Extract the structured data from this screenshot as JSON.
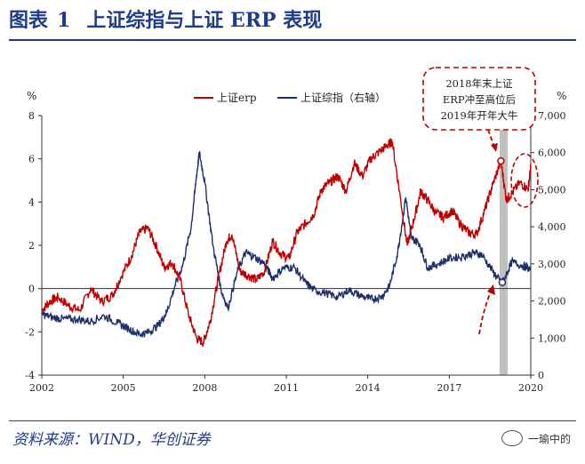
{
  "header": {
    "figure_label": "图表",
    "figure_number": "1",
    "title": "上证综指与上证 ERP 表现"
  },
  "source": "资料来源：WIND，华创证券",
  "watermark": "一瑜中的",
  "colors": {
    "erp": "#c00000",
    "index": "#1f2f6b",
    "title": "#1f3c88",
    "highlight": "#c0c0c0"
  },
  "chart_data": {
    "type": "line",
    "left_axis_unit": "%",
    "right_axis_unit": "%",
    "x_ticks": [
      "2002",
      "2005",
      "2008",
      "2011",
      "2014",
      "2017",
      "2020"
    ],
    "x_tick_values": [
      2002,
      2005,
      2008,
      2011,
      2014,
      2017,
      2020
    ],
    "x_range": [
      2002,
      2020
    ],
    "y_left_ticks": [
      "-4",
      "-2",
      "0",
      "2",
      "4",
      "6",
      "8"
    ],
    "y_left_range": [
      -4,
      8
    ],
    "y_right_ticks": [
      "0",
      "1,000",
      "2,000",
      "3,000",
      "4,000",
      "5,000",
      "6,000",
      "7,000"
    ],
    "y_right_range": [
      0,
      7000
    ],
    "legend": [
      "上证erp",
      "上证综指（右轴）"
    ],
    "annotation": {
      "lines": [
        "2018年末上证",
        "ERP冲至高位后",
        "2019年开年大牛"
      ]
    },
    "highlight_band": [
      2018.85,
      2019.15
    ],
    "series": [
      {
        "name": "上证erp",
        "axis": "left",
        "x": [
          2002.0,
          2002.3,
          2002.6,
          2003.0,
          2003.4,
          2003.8,
          2004.2,
          2004.6,
          2004.9,
          2005.3,
          2005.6,
          2005.9,
          2006.2,
          2006.5,
          2006.8,
          2007.1,
          2007.4,
          2007.7,
          2007.95,
          2008.2,
          2008.5,
          2008.8,
          2009.0,
          2009.3,
          2009.6,
          2009.9,
          2010.2,
          2010.5,
          2010.8,
          2011.1,
          2011.4,
          2011.7,
          2012.0,
          2012.3,
          2012.6,
          2012.9,
          2013.2,
          2013.5,
          2013.8,
          2014.1,
          2014.4,
          2014.7,
          2014.9,
          2015.2,
          2015.45,
          2015.7,
          2015.95,
          2016.2,
          2016.5,
          2016.8,
          2017.1,
          2017.4,
          2017.7,
          2018.0,
          2018.3,
          2018.6,
          2018.9,
          2019.1,
          2019.3,
          2019.6,
          2019.9,
          2020.0
        ],
        "values": [
          -1.0,
          -0.6,
          -0.4,
          -0.8,
          -1.0,
          0.0,
          -0.6,
          -0.3,
          0.5,
          1.5,
          2.6,
          2.8,
          2.0,
          1.0,
          1.2,
          0.4,
          -1.2,
          -2.3,
          -2.5,
          -1.5,
          0.5,
          2.2,
          2.5,
          0.8,
          0.6,
          0.4,
          0.8,
          2.2,
          1.6,
          1.4,
          2.6,
          3.0,
          3.4,
          4.6,
          4.9,
          5.2,
          4.5,
          5.8,
          5.2,
          6.0,
          6.3,
          6.6,
          6.8,
          4.2,
          2.0,
          3.2,
          4.5,
          4.1,
          3.5,
          3.3,
          3.6,
          3.0,
          2.6,
          2.5,
          3.6,
          4.8,
          5.9,
          4.1,
          4.4,
          4.9,
          4.6,
          5.6
        ]
      },
      {
        "name": "上证综指（右轴）",
        "axis": "right",
        "x": [
          2002.0,
          2002.4,
          2002.8,
          2003.3,
          2003.8,
          2004.3,
          2004.8,
          2005.2,
          2005.6,
          2005.9,
          2006.3,
          2006.6,
          2006.9,
          2007.2,
          2007.5,
          2007.7,
          2007.8,
          2008.0,
          2008.3,
          2008.6,
          2008.85,
          2009.2,
          2009.5,
          2009.8,
          2010.2,
          2010.5,
          2010.9,
          2011.3,
          2011.7,
          2012.0,
          2012.5,
          2012.9,
          2013.3,
          2013.7,
          2014.1,
          2014.5,
          2014.8,
          2015.1,
          2015.4,
          2015.6,
          2015.9,
          2016.2,
          2016.6,
          2017.0,
          2017.5,
          2017.9,
          2018.2,
          2018.6,
          2018.9,
          2019.0,
          2019.3,
          2019.7,
          2020.0
        ],
        "values": [
          1650,
          1550,
          1520,
          1500,
          1450,
          1600,
          1400,
          1250,
          1100,
          1150,
          1350,
          1700,
          2400,
          3000,
          4000,
          5400,
          6000,
          5200,
          3500,
          2300,
          1800,
          2800,
          3300,
          3200,
          3000,
          2600,
          2900,
          2900,
          2500,
          2300,
          2200,
          2100,
          2300,
          2150,
          2050,
          2100,
          2400,
          3300,
          4800,
          3700,
          3550,
          2900,
          3000,
          3150,
          3200,
          3300,
          3250,
          2800,
          2500,
          2550,
          3050,
          2950,
          2850
        ]
      }
    ]
  }
}
